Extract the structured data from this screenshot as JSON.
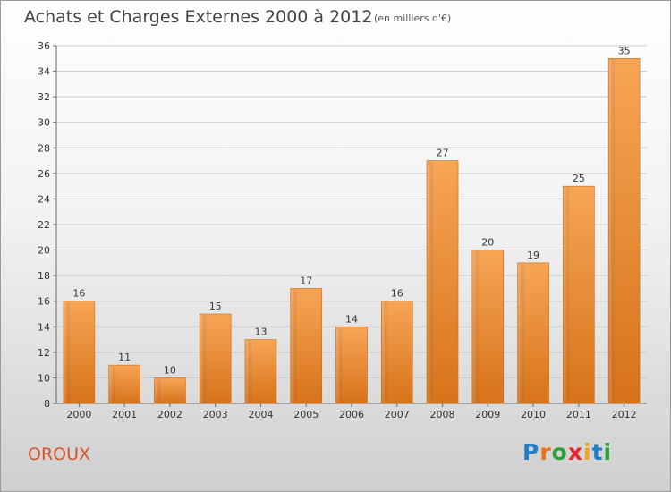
{
  "header": {
    "title": "Achats et Charges Externes 2000 à 2012",
    "subtitle": "(en milliers d'€)"
  },
  "footer": {
    "commune": "OROUX",
    "brand": "Proxiti",
    "brand_colors": [
      "#1e7ec8",
      "#e8721c",
      "#2c9e3a",
      "#e3262e",
      "#f3a21a",
      "#1e7ec8",
      "#2c9e3a"
    ]
  },
  "chart_data": {
    "type": "bar",
    "categories": [
      "2000",
      "2001",
      "2002",
      "2003",
      "2004",
      "2005",
      "2006",
      "2007",
      "2008",
      "2009",
      "2010",
      "2011",
      "2012"
    ],
    "values": [
      16,
      11,
      10,
      15,
      13,
      17,
      14,
      16,
      27,
      20,
      19,
      25,
      35
    ],
    "title": "Achats et Charges Externes 2000 à 2012",
    "subtitle": "(en milliers d'€)",
    "ylim": [
      8,
      36
    ],
    "yticks": [
      8,
      10,
      12,
      14,
      16,
      18,
      20,
      22,
      24,
      26,
      28,
      30,
      32,
      34,
      36
    ],
    "grid": true,
    "bar_color": "#f0913a",
    "data_labels": true
  }
}
